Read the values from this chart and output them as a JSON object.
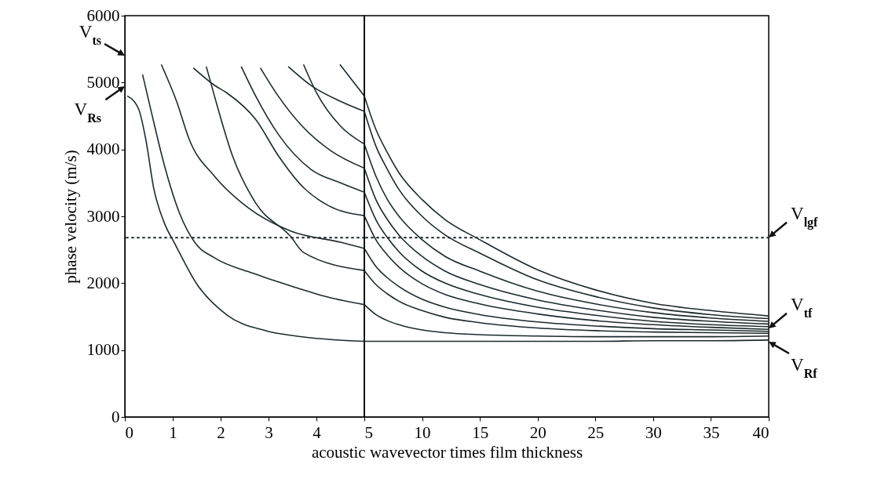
{
  "chart_data": [
    {
      "type": "line",
      "ylabel": "phase velocity (m/s)",
      "xlim": [
        0,
        5
      ],
      "xticks": [
        0,
        1,
        2,
        3,
        4
      ],
      "ylim": [
        0,
        6000
      ],
      "yticks": [
        0,
        1000,
        2000,
        3000,
        4000,
        5000,
        6000
      ],
      "grid": false,
      "legend": false,
      "tick_labels": "xy",
      "series": [
        {
          "color": "#1e2a2e",
          "x": [
            0.05,
            0.29,
            0.44,
            0.6,
            0.83,
            1.03,
            1.5,
            2.14,
            2.94,
            3.57,
            5
          ],
          "values": [
            4800,
            4600,
            4140,
            3430,
            2890,
            2610,
            1990,
            1520,
            1290,
            1210,
            1130
          ]
        },
        {
          "color": "#1e2a2e",
          "x": [
            0.37,
            0.56,
            0.83,
            1.14,
            1.46,
            1.87,
            2.67,
            3.46,
            4.25,
            5
          ],
          "values": [
            5120,
            4540,
            3750,
            3050,
            2610,
            2380,
            2150,
            1960,
            1790,
            1680
          ]
        },
        {
          "color": "#1e2a2e",
          "x": [
            0.76,
            1.08,
            1.35,
            1.87,
            2.57,
            3.46,
            4.52,
            5
          ],
          "values": [
            5270,
            4720,
            4140,
            3600,
            3130,
            2780,
            2610,
            2520
          ]
        },
        {
          "color": "#1e2a2e",
          "x": [
            1.43,
            1.87,
            2.14,
            2.73,
            3.21,
            3.73,
            4.25,
            5
          ],
          "values": [
            5220,
            4960,
            4840,
            4450,
            3900,
            3430,
            3160,
            3010
          ]
        },
        {
          "color": "#1e2a2e",
          "x": [
            1.7,
            1.87,
            2.25,
            2.73,
            3.46,
            3.73,
            5
          ],
          "values": [
            5240,
            4800,
            3900,
            3200,
            2700,
            2460,
            2190
          ]
        },
        {
          "color": "#1e2a2e",
          "x": [
            2.43,
            2.73,
            3.21,
            3.89,
            4.5,
            5
          ],
          "values": [
            5240,
            4800,
            4220,
            3700,
            3500,
            3360
          ]
        },
        {
          "color": "#1e2a2e",
          "x": [
            2.83,
            3.2,
            3.7,
            4.3,
            5
          ],
          "values": [
            5220,
            4800,
            4350,
            3980,
            3720
          ]
        },
        {
          "color": "#1e2a2e",
          "x": [
            3.41,
            3.9,
            4.5,
            5
          ],
          "values": [
            5240,
            4950,
            4720,
            4570
          ]
        },
        {
          "color": "#1e2a2e",
          "x": [
            3.73,
            4.0,
            4.5,
            5
          ],
          "values": [
            5270,
            4850,
            4350,
            4080
          ]
        },
        {
          "color": "#1e2a2e",
          "x": [
            4.49,
            4.75,
            5
          ],
          "values": [
            5270,
            5030,
            4800
          ]
        }
      ],
      "ref_lines": [
        {
          "axis": "y",
          "value": 2680,
          "line_style": "dotted",
          "color": "#1e2a2e"
        }
      ],
      "annotations": [
        "V$_{ts}$",
        "V$_{Rs}$"
      ]
    },
    {
      "type": "line",
      "xlabel": "acoustic wavevector times film thickness",
      "xlim": [
        5,
        40
      ],
      "xticks": [
        5,
        10,
        15,
        20,
        25,
        30,
        35,
        40
      ],
      "ylim": [
        0,
        6000
      ],
      "grid": false,
      "legend": false,
      "tick_labels": "x",
      "series": [
        {
          "color": "#1e2a2e",
          "x": [
            5,
            6,
            7,
            8,
            10,
            12,
            15,
            20,
            25,
            30,
            35,
            40
          ],
          "values": [
            1130,
            1130,
            1130,
            1130,
            1130,
            1130,
            1130,
            1130,
            1130,
            1140,
            1140,
            1150
          ]
        },
        {
          "color": "#1e2a2e",
          "x": [
            5,
            6,
            7,
            8,
            10,
            12,
            15,
            20,
            25,
            30,
            35,
            40
          ],
          "values": [
            1680,
            1530,
            1440,
            1380,
            1300,
            1260,
            1230,
            1210,
            1200,
            1200,
            1200,
            1210
          ]
        },
        {
          "color": "#1e2a2e",
          "x": [
            5,
            6,
            7,
            8,
            10,
            12,
            15,
            20,
            25,
            30,
            35,
            40
          ],
          "values": [
            2190,
            1980,
            1840,
            1730,
            1590,
            1490,
            1410,
            1330,
            1290,
            1270,
            1260,
            1250
          ]
        },
        {
          "color": "#1e2a2e",
          "x": [
            5,
            6,
            7,
            8,
            10,
            12,
            15,
            20,
            25,
            30,
            35,
            40
          ],
          "values": [
            2520,
            2250,
            2080,
            1950,
            1760,
            1640,
            1530,
            1420,
            1360,
            1320,
            1300,
            1280
          ]
        },
        {
          "color": "#1e2a2e",
          "x": [
            5,
            6,
            7,
            8,
            10,
            12,
            15,
            20,
            25,
            30,
            35,
            40
          ],
          "values": [
            3010,
            2650,
            2420,
            2240,
            1990,
            1830,
            1690,
            1540,
            1440,
            1380,
            1340,
            1310
          ]
        },
        {
          "color": "#1e2a2e",
          "x": [
            5,
            6,
            7,
            8,
            10,
            12,
            15,
            20,
            25,
            30,
            35,
            40
          ],
          "values": [
            3360,
            2950,
            2680,
            2470,
            2180,
            2000,
            1830,
            1640,
            1520,
            1430,
            1380,
            1350
          ]
        },
        {
          "color": "#1e2a2e",
          "x": [
            5,
            6,
            7,
            8,
            10,
            12,
            15,
            20,
            25,
            30,
            35,
            40
          ],
          "values": [
            3720,
            3250,
            2950,
            2720,
            2400,
            2180,
            1980,
            1750,
            1600,
            1490,
            1430,
            1390
          ]
        },
        {
          "color": "#1e2a2e",
          "x": [
            5,
            6,
            7,
            8,
            10,
            12,
            15,
            20,
            25,
            30,
            35,
            40
          ],
          "values": [
            4080,
            3600,
            3250,
            3000,
            2650,
            2400,
            2180,
            1880,
            1690,
            1560,
            1480,
            1430
          ]
        },
        {
          "color": "#1e2a2e",
          "x": [
            5,
            6,
            7,
            8,
            10,
            12,
            15,
            20,
            25,
            30,
            35,
            40
          ],
          "values": [
            4570,
            4050,
            3700,
            3400,
            3000,
            2720,
            2450,
            2050,
            1800,
            1630,
            1530,
            1470
          ]
        },
        {
          "color": "#1e2a2e",
          "x": [
            5,
            6,
            7,
            8,
            10,
            12,
            15,
            20,
            25,
            30,
            35,
            40
          ],
          "values": [
            4800,
            4300,
            3950,
            3650,
            3250,
            2950,
            2650,
            2200,
            1900,
            1700,
            1590,
            1510
          ]
        }
      ],
      "ref_lines": [
        {
          "axis": "y",
          "value": 2680,
          "line_style": "dotted",
          "color": "#1e2a2e"
        }
      ],
      "annotations": [
        "V$_{lgf}$",
        "V$_{tf}$",
        "V$_{Rf}$"
      ]
    }
  ]
}
